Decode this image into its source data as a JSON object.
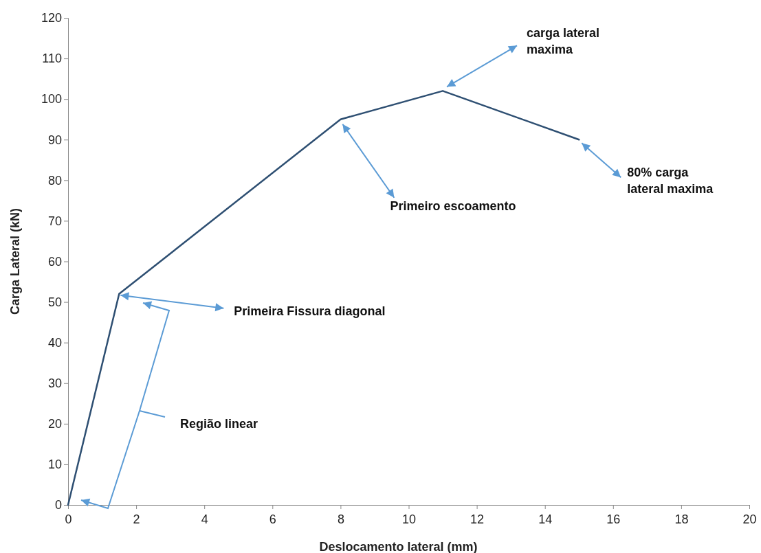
{
  "chart_data": {
    "type": "line",
    "xlabel": "Deslocamento lateral (mm)",
    "ylabel": "Carga Lateral (kN)",
    "x": [
      0,
      1.5,
      8,
      11,
      15
    ],
    "series": [
      {
        "color": "#2e4f72",
        "values": [
          0,
          52,
          95,
          102,
          90
        ]
      }
    ],
    "xlim": [
      0,
      20
    ],
    "xticks": [
      0,
      2,
      4,
      6,
      8,
      10,
      12,
      14,
      16,
      18,
      20
    ],
    "ylim": [
      0,
      120
    ],
    "yticks": [
      0,
      10,
      20,
      30,
      40,
      50,
      60,
      70,
      80,
      90,
      100,
      110,
      120
    ],
    "grid": false,
    "marker": "none",
    "line_style": "solid",
    "annotations": [
      {
        "text": "carga lateral\nmaxima",
        "x": 11,
        "y": 102
      },
      {
        "text": "Primeiro escoamento",
        "x": 8,
        "y": 95
      },
      {
        "text": "80% carga\nlateral maxima",
        "x": 15,
        "y": 90
      },
      {
        "text": "Primeira Fissura diagonal",
        "x": 1.5,
        "y": 52
      },
      "Região linear"
    ]
  }
}
